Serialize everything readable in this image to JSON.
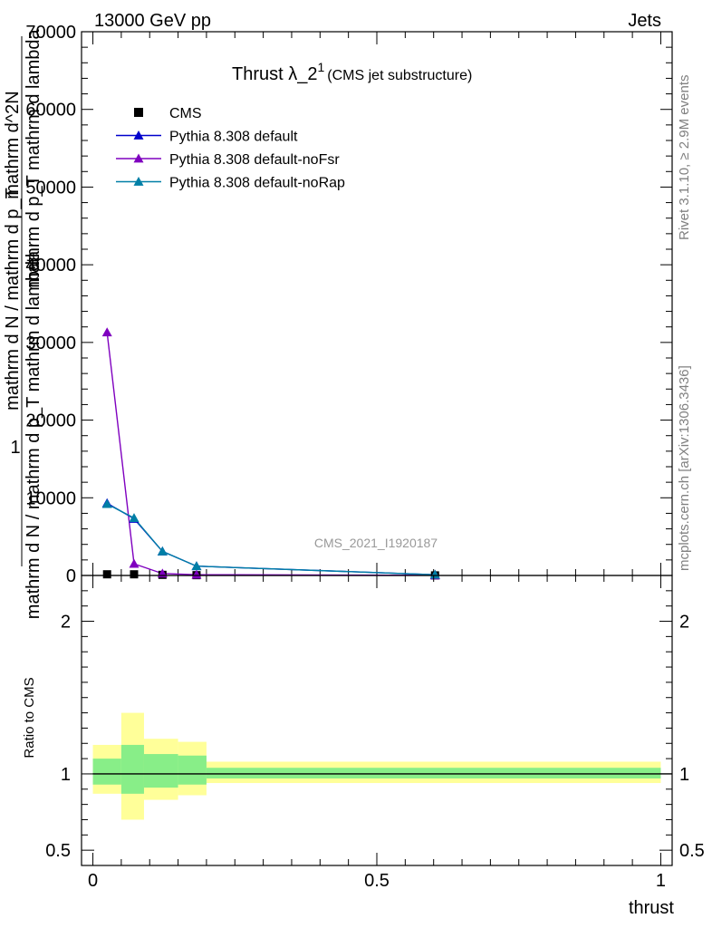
{
  "header": {
    "energy_label": "13000 GeV pp",
    "process_label": "Jets",
    "rivet_label": "Rivet 3.1.10, ≥ 2.9M events",
    "mcplots_label": "mcplots.cern.ch [arXiv:1306.3436]"
  },
  "chart_data": {
    "type": "line",
    "title_main": "Thrust λ_2",
    "title_sup": "1",
    "title_sub": "(CMS jet substructure)",
    "watermark": "CMS_2021_I1920187",
    "xlabel": "thrust",
    "ylabel_top_fragments": [
      "1",
      "mathrm d N / mathrm d p_T",
      "mathrm d N / mathrm d p_T mathrm d lambda",
      "mathrm d^2N",
      "mathrm d p_T mathrm d lambda"
    ],
    "ylabel_ratio": "Ratio to CMS",
    "xlim": [
      -0.02,
      1.02
    ],
    "ylim_main": [
      0,
      70000
    ],
    "ylim_ratio": [
      0.4,
      2.3
    ],
    "x_ticks": [
      0,
      0.5,
      1
    ],
    "x_tick_labels": [
      "0",
      "0.5",
      "1"
    ],
    "y_ticks_main": [
      0,
      10000,
      20000,
      30000,
      40000,
      50000,
      60000,
      70000
    ],
    "y_tick_labels_main": [
      "0",
      "10000",
      "20000",
      "30000",
      "40000",
      "50000",
      "60000",
      "70000"
    ],
    "y_ticks_ratio": [
      0.5,
      1,
      2
    ],
    "y_tick_labels_ratio": [
      "0.5",
      "1",
      "2"
    ],
    "x": [
      0.025,
      0.0725,
      0.1225,
      0.1825,
      0.6025
    ],
    "series": [
      {
        "name": "CMS",
        "marker": "square",
        "color": "#000000",
        "values": [
          150,
          150,
          80,
          40,
          10
        ]
      },
      {
        "name": "Pythia 8.308 default",
        "marker": "triangle",
        "color": "#0000cc",
        "values": [
          9300,
          7300,
          3100,
          1200,
          100
        ]
      },
      {
        "name": "Pythia 8.308 default-noFsr",
        "marker": "triangle",
        "color": "#7f00bf",
        "values": [
          31300,
          1500,
          250,
          100,
          20
        ]
      },
      {
        "name": "Pythia 8.308 default-noRap",
        "marker": "triangle",
        "color": "#007fa6",
        "values": [
          9200,
          7400,
          3100,
          1200,
          100
        ]
      }
    ],
    "ratio_bands": {
      "bin_edges": [
        0.0,
        0.05,
        0.09,
        0.15,
        0.2,
        1.0
      ],
      "outer_low": [
        0.87,
        0.7,
        0.83,
        0.86,
        0.94
      ],
      "outer_high": [
        1.19,
        1.4,
        1.23,
        1.21,
        1.08
      ],
      "inner_low": [
        0.93,
        0.87,
        0.91,
        0.93,
        0.97
      ],
      "inner_high": [
        1.1,
        1.19,
        1.13,
        1.12,
        1.04
      ],
      "outer_color": "#ffff99",
      "inner_color": "#88ee88"
    },
    "legend_position": "top-left"
  }
}
